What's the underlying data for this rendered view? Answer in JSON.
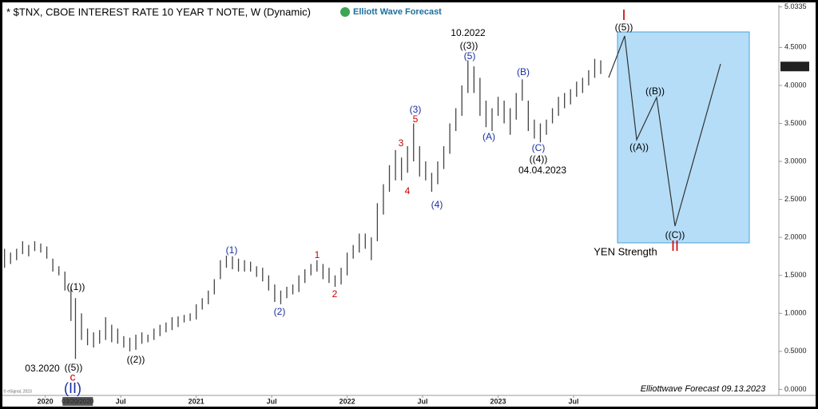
{
  "chart_data": {
    "type": "ohlc",
    "title": "* $TNX, CBOE INTEREST RATE 10 YEAR T NOTE, W (Dynamic)",
    "logo": "Elliott Wave Forecast",
    "color": "#444444",
    "x": [
      2019.73,
      2019.77,
      2019.81,
      2019.85,
      2019.89,
      2019.93,
      2019.97,
      2020.01,
      2020.05,
      2020.09,
      2020.13,
      2020.17,
      2020.2,
      2020.24,
      2020.28,
      2020.32,
      2020.36,
      2020.4,
      2020.44,
      2020.48,
      2020.52,
      2020.56,
      2020.6,
      2020.64,
      2020.68,
      2020.72,
      2020.76,
      2020.8,
      2020.84,
      2020.88,
      2020.92,
      2020.96,
      2021.0,
      2021.04,
      2021.08,
      2021.12,
      2021.16,
      2021.2,
      2021.24,
      2021.28,
      2021.32,
      2021.36,
      2021.4,
      2021.44,
      2021.48,
      2021.52,
      2021.56,
      2021.6,
      2021.64,
      2021.68,
      2021.72,
      2021.76,
      2021.8,
      2021.84,
      2021.88,
      2021.92,
      2021.96,
      2022.0,
      2022.04,
      2022.08,
      2022.12,
      2022.16,
      2022.2,
      2022.24,
      2022.28,
      2022.32,
      2022.36,
      2022.4,
      2022.44,
      2022.48,
      2022.52,
      2022.56,
      2022.6,
      2022.64,
      2022.68,
      2022.72,
      2022.76,
      2022.8,
      2022.84,
      2022.88,
      2022.92,
      2022.96,
      2023.0,
      2023.04,
      2023.08,
      2023.12,
      2023.16,
      2023.2,
      2023.24,
      2023.28,
      2023.32,
      2023.36,
      2023.4,
      2023.44,
      2023.48,
      2023.52,
      2023.56,
      2023.6,
      2023.64,
      2023.68
    ],
    "high": [
      1.85,
      1.8,
      1.85,
      1.95,
      1.9,
      1.95,
      1.92,
      1.88,
      1.72,
      1.62,
      1.55,
      1.35,
      1.2,
      1.0,
      0.8,
      0.75,
      0.78,
      0.95,
      0.85,
      0.8,
      0.7,
      0.68,
      0.72,
      0.75,
      0.72,
      0.8,
      0.85,
      0.88,
      0.95,
      0.96,
      0.98,
      1.0,
      1.12,
      1.2,
      1.3,
      1.45,
      1.7,
      1.76,
      1.75,
      1.72,
      1.7,
      1.68,
      1.62,
      1.6,
      1.5,
      1.38,
      1.3,
      1.35,
      1.38,
      1.5,
      1.58,
      1.65,
      1.7,
      1.65,
      1.6,
      1.5,
      1.6,
      1.8,
      1.9,
      2.05,
      2.05,
      2.0,
      2.45,
      2.7,
      2.95,
      3.15,
      3.05,
      3.2,
      3.5,
      3.2,
      3.0,
      2.85,
      3.0,
      3.2,
      3.5,
      3.7,
      4.0,
      4.33,
      4.25,
      4.1,
      3.8,
      3.7,
      3.85,
      3.8,
      3.7,
      3.9,
      4.08,
      3.8,
      3.55,
      3.5,
      3.55,
      3.7,
      3.85,
      3.9,
      3.95,
      4.05,
      4.1,
      4.2,
      4.35,
      4.33
    ],
    "low": [
      1.6,
      1.65,
      1.7,
      1.78,
      1.75,
      1.82,
      1.8,
      1.72,
      1.55,
      1.5,
      1.3,
      0.9,
      0.4,
      0.65,
      0.58,
      0.55,
      0.6,
      0.65,
      0.62,
      0.6,
      0.55,
      0.5,
      0.52,
      0.6,
      0.62,
      0.65,
      0.7,
      0.75,
      0.78,
      0.82,
      0.88,
      0.9,
      0.92,
      1.05,
      1.12,
      1.25,
      1.45,
      1.6,
      1.58,
      1.55,
      1.55,
      1.55,
      1.48,
      1.42,
      1.3,
      1.15,
      1.12,
      1.2,
      1.25,
      1.28,
      1.4,
      1.5,
      1.55,
      1.45,
      1.4,
      1.35,
      1.38,
      1.5,
      1.72,
      1.8,
      1.85,
      1.7,
      1.95,
      2.3,
      2.6,
      2.75,
      2.75,
      2.85,
      3.0,
      2.8,
      2.75,
      2.6,
      2.7,
      2.9,
      3.1,
      3.4,
      3.6,
      3.9,
      3.9,
      3.6,
      3.45,
      3.4,
      3.6,
      3.5,
      3.35,
      3.55,
      3.8,
      3.4,
      3.3,
      3.25,
      3.35,
      3.5,
      3.6,
      3.7,
      3.75,
      3.85,
      3.9,
      4.0,
      4.1,
      4.15
    ],
    "xlim": [
      2019.7,
      2024.86
    ],
    "xticks": [
      {
        "value": 2020,
        "label": "2020"
      },
      {
        "value": 2020.5,
        "label": "Jul"
      },
      {
        "value": 2021,
        "label": "2021"
      },
      {
        "value": 2021.5,
        "label": "Jul"
      },
      {
        "value": 2022,
        "label": "2022"
      },
      {
        "value": 2022.5,
        "label": "Jul"
      },
      {
        "value": 2023,
        "label": "2023"
      },
      {
        "value": 2023.5,
        "label": "Jul"
      }
    ],
    "cursor_date": {
      "value": 2020.215,
      "label": "03/20/2020"
    },
    "ylim": [
      -0.08,
      5.04
    ],
    "yticks": [
      {
        "value": 0,
        "label": "0.0000"
      },
      {
        "value": 0.5,
        "label": "0.5000"
      },
      {
        "value": 1,
        "label": "1.0000"
      },
      {
        "value": 1.5,
        "label": "1.5000"
      },
      {
        "value": 2,
        "label": "2.0000"
      },
      {
        "value": 2.5,
        "label": "2.5000"
      },
      {
        "value": 3,
        "label": "3.0000"
      },
      {
        "value": 3.5,
        "label": "3.5000"
      },
      {
        "value": 4,
        "label": "4.0000"
      },
      {
        "value": 4.5,
        "label": "4.5000"
      },
      {
        "value": 5.0335,
        "label": "5.0335"
      }
    ],
    "last_price": {
      "value": 4.249,
      "label": "4.2490"
    },
    "annotations": [
      {
        "text": "I",
        "color": "#cc0000"
      },
      {
        "text": "((5))",
        "color": "#000000"
      },
      {
        "text": "10.2022",
        "color": "#000000"
      },
      {
        "text": "((3))",
        "color": "#000000"
      },
      {
        "text": "(5)",
        "color": "#1a2fa0"
      },
      {
        "text": "(B)",
        "color": "#1a2fa0"
      },
      {
        "text": "(3)",
        "color": "#1a2fa0"
      },
      {
        "text": "5",
        "color": "#cc0000"
      },
      {
        "text": "(A)",
        "color": "#1a2fa0"
      },
      {
        "text": "3",
        "color": "#cc0000"
      },
      {
        "text": "(C)",
        "color": "#1a2fa0"
      },
      {
        "text": "((4))",
        "color": "#000000"
      },
      {
        "text": "04.04.2023",
        "color": "#000000"
      },
      {
        "text": "4",
        "color": "#cc0000"
      },
      {
        "text": "(4)",
        "color": "#1a2fa0"
      },
      {
        "text": "(1)",
        "color": "#1a2fa0"
      },
      {
        "text": "1",
        "color": "#cc0000"
      },
      {
        "text": "2",
        "color": "#cc0000"
      },
      {
        "text": "((1))",
        "color": "#000000"
      },
      {
        "text": "(2)",
        "color": "#1a2fa0"
      },
      {
        "text": "((2))",
        "color": "#000000"
      },
      {
        "text": "03.2020",
        "color": "#000000"
      },
      {
        "text": "((5))",
        "color": "#000000"
      },
      {
        "text": "c",
        "color": "#cc0000"
      },
      {
        "text": "(II)",
        "color": "#1a2fa0"
      },
      {
        "text": "((B))",
        "color": "#000000"
      },
      {
        "text": "((A))",
        "color": "#000000"
      },
      {
        "text": "((C))",
        "color": "#000000"
      },
      {
        "text": "II",
        "color": "#cc0000"
      },
      {
        "text": "YEN Strength",
        "color": "#000000"
      },
      {
        "text": "Elliottwave Forecast  09.13.2023",
        "color": "#000000"
      },
      {
        "text": "© eSignal, 2023",
        "color": "#666666"
      }
    ]
  }
}
